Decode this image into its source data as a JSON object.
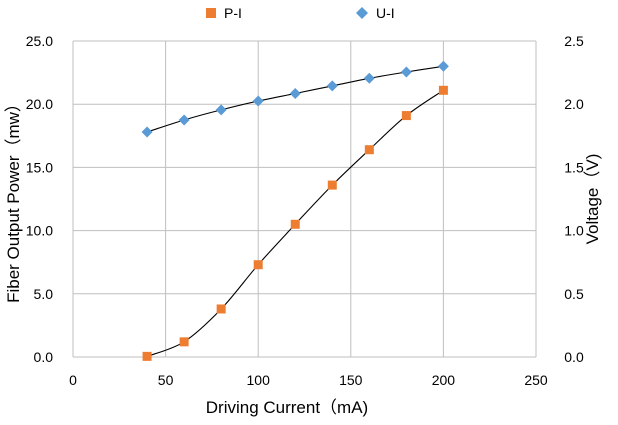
{
  "chart_data": {
    "type": "scatter",
    "title": "",
    "xlabel": "Driving Current（mA)",
    "ylabel_left": "Fiber Output Power（mw）",
    "ylabel_right": "Voltage（V)",
    "xlim": [
      0,
      250
    ],
    "ylim_left": [
      0,
      25
    ],
    "ylim_right": [
      0,
      2.5
    ],
    "x_ticks": [
      "0",
      "50",
      "100",
      "150",
      "200",
      "250"
    ],
    "y_left_ticks": [
      "0.0",
      "5.0",
      "10.0",
      "15.0",
      "20.0",
      "25.0"
    ],
    "y_right_ticks": [
      "0.0",
      "0.5",
      "1.0",
      "1.5",
      "2.0",
      "2.5"
    ],
    "grid": true,
    "legend_position": "top-center",
    "series": [
      {
        "name": "P-I",
        "axis": "left",
        "marker": "square",
        "color": "#ED7D31",
        "x": [
          40,
          60,
          80,
          100,
          120,
          140,
          160,
          180,
          200
        ],
        "y": [
          0.05,
          1.2,
          3.8,
          7.3,
          10.5,
          13.6,
          16.4,
          19.1,
          21.1
        ]
      },
      {
        "name": "U-I",
        "axis": "right",
        "marker": "diamond",
        "color": "#5B9BD5",
        "x": [
          40,
          60,
          80,
          100,
          120,
          140,
          160,
          180,
          200
        ],
        "y": [
          1.78,
          1.875,
          1.955,
          2.025,
          2.085,
          2.145,
          2.205,
          2.255,
          2.3
        ]
      }
    ]
  }
}
